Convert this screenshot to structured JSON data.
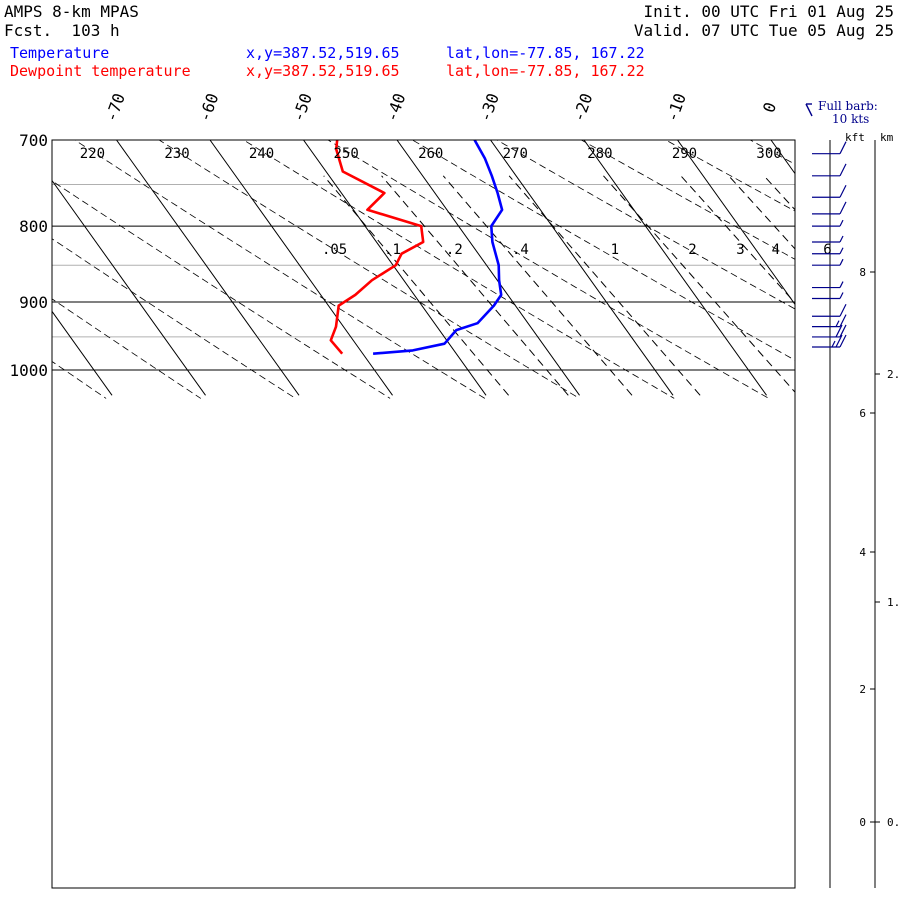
{
  "header": {
    "model": "AMPS 8-km MPAS",
    "forecast": "Fcst.  103 h",
    "init": "Init. 00 UTC Fri 01 Aug 25",
    "valid": "Valid. 07 UTC Tue 05 Aug 25",
    "temp_label": "Temperature",
    "dew_label": "Dewpoint temperature",
    "temp_xy": "x,y=387.52,519.65",
    "temp_latlon": "lat,lon=-77.85, 167.22",
    "dew_xy": "x,y=387.52,519.65",
    "dew_latlon": "lat,lon=-77.85, 167.22",
    "barb_note_1": "Full barb:",
    "barb_note_2": "10 kts",
    "kft_label": "kft",
    "km_label": "km"
  },
  "colors": {
    "temperature": "#0000ff",
    "dewpoint": "#ff0000",
    "barbs": "#00008b",
    "grid": "#000000",
    "hgrid": "#b0b0b0"
  },
  "chart_data": {
    "type": "line",
    "ylabel_ticks": [
      700,
      800,
      900,
      1000
    ],
    "pressure_range": [
      1040,
      700
    ],
    "isotherm_labels": [
      -70,
      -60,
      -50,
      -40,
      -30,
      -20,
      -10,
      0
    ],
    "theta_labels": [
      220,
      230,
      240,
      250,
      260,
      270,
      280,
      290,
      300
    ],
    "mixing_ratio_labels": [
      ".05",
      ".1",
      ".2",
      ".4",
      "1",
      "2",
      "3",
      "4",
      "6"
    ],
    "series": [
      {
        "name": "Temperature",
        "points": [
          {
            "p": 700,
            "t": -31.7
          },
          {
            "p": 720,
            "t": -32.0
          },
          {
            "p": 740,
            "t": -32.6
          },
          {
            "p": 760,
            "t": -33.3
          },
          {
            "p": 780,
            "t": -34.1
          },
          {
            "p": 800,
            "t": -36.5
          },
          {
            "p": 820,
            "t": -37.6
          },
          {
            "p": 850,
            "t": -38.7
          },
          {
            "p": 870,
            "t": -39.8
          },
          {
            "p": 890,
            "t": -40.7
          },
          {
            "p": 905,
            "t": -42.3
          },
          {
            "p": 930,
            "t": -45.4
          },
          {
            "p": 940,
            "t": -48.2
          },
          {
            "p": 960,
            "t": -50.5
          },
          {
            "p": 970,
            "t": -54.4
          },
          {
            "p": 975,
            "t": -58.9
          }
        ]
      },
      {
        "name": "Dewpoint temperature",
        "points": [
          {
            "p": 700,
            "t": -46.4
          },
          {
            "p": 710,
            "t": -47.2
          },
          {
            "p": 735,
            "t": -48.2
          },
          {
            "p": 760,
            "t": -45.4
          },
          {
            "p": 780,
            "t": -48.5
          },
          {
            "p": 800,
            "t": -44.0
          },
          {
            "p": 820,
            "t": -45.0
          },
          {
            "p": 835,
            "t": -48.2
          },
          {
            "p": 850,
            "t": -49.7
          },
          {
            "p": 870,
            "t": -53.4
          },
          {
            "p": 890,
            "t": -56.3
          },
          {
            "p": 905,
            "t": -58.9
          },
          {
            "p": 935,
            "t": -60.8
          },
          {
            "p": 955,
            "t": -62.4
          },
          {
            "p": 975,
            "t": -62.2
          }
        ]
      }
    ],
    "wind_barbs": [
      {
        "p": 715,
        "speed": 10
      },
      {
        "p": 740,
        "speed": 10
      },
      {
        "p": 765,
        "speed": 10
      },
      {
        "p": 785,
        "speed": 10
      },
      {
        "p": 800,
        "speed": 5
      },
      {
        "p": 820,
        "speed": 5
      },
      {
        "p": 835,
        "speed": 5
      },
      {
        "p": 850,
        "speed": 5
      },
      {
        "p": 880,
        "speed": 5
      },
      {
        "p": 895,
        "speed": 5
      },
      {
        "p": 920,
        "speed": 10
      },
      {
        "p": 935,
        "speed": 15
      },
      {
        "p": 950,
        "speed": 20
      },
      {
        "p": 965,
        "speed": 25
      }
    ],
    "height_axes": {
      "kft": [
        "8",
        "6",
        "4",
        "2",
        "0"
      ],
      "km": [
        "2.",
        "1.",
        "0."
      ]
    }
  }
}
